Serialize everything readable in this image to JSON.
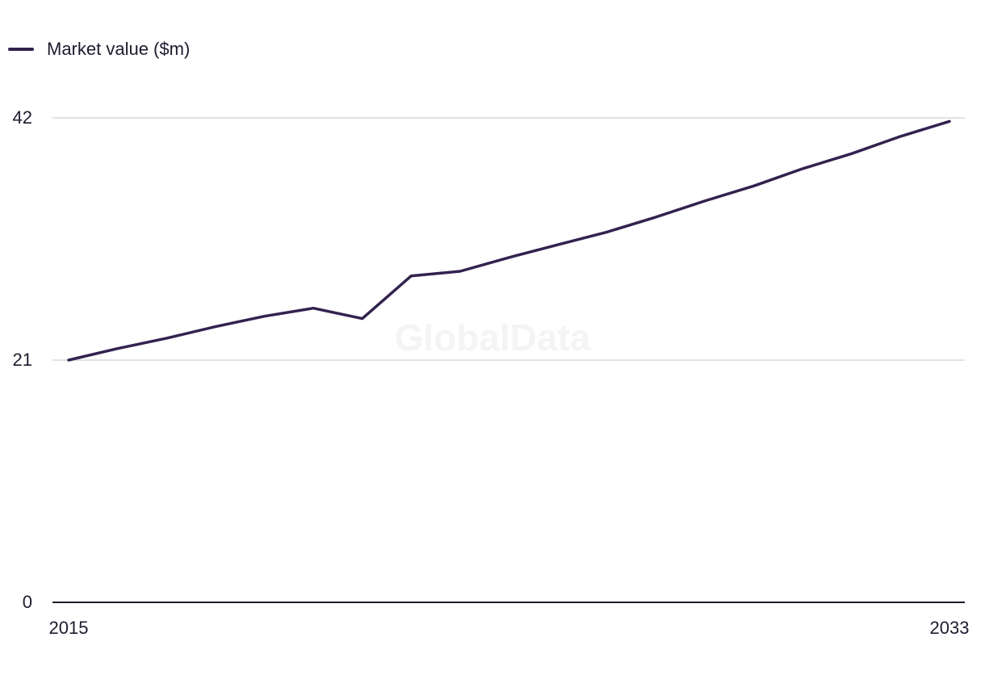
{
  "watermark": "GlobalData",
  "colors": {
    "series": "#33224f",
    "grid": "#d9d9de",
    "axis": "#1f1a2e"
  },
  "chart_data": {
    "type": "line",
    "title": "",
    "xlabel": "",
    "ylabel": "",
    "x": [
      2015,
      2016,
      2017,
      2018,
      2019,
      2020,
      2021,
      2022,
      2023,
      2024,
      2025,
      2026,
      2027,
      2028,
      2029,
      2030,
      2031,
      2032,
      2033
    ],
    "series": [
      {
        "name": "Market value ($m)",
        "values": [
          21.0,
          22.0,
          22.9,
          23.9,
          24.8,
          25.5,
          24.6,
          28.3,
          28.7,
          29.9,
          31.0,
          32.1,
          33.4,
          34.8,
          36.1,
          37.6,
          38.9,
          40.4,
          41.7
        ]
      }
    ],
    "xlim": [
      2015,
      2033
    ],
    "ylim": [
      0,
      42
    ],
    "y_ticks": [
      "0",
      "21",
      "42"
    ],
    "x_ticks": [
      "2015",
      "2033"
    ],
    "grid": true,
    "legend_position": "top-left"
  }
}
